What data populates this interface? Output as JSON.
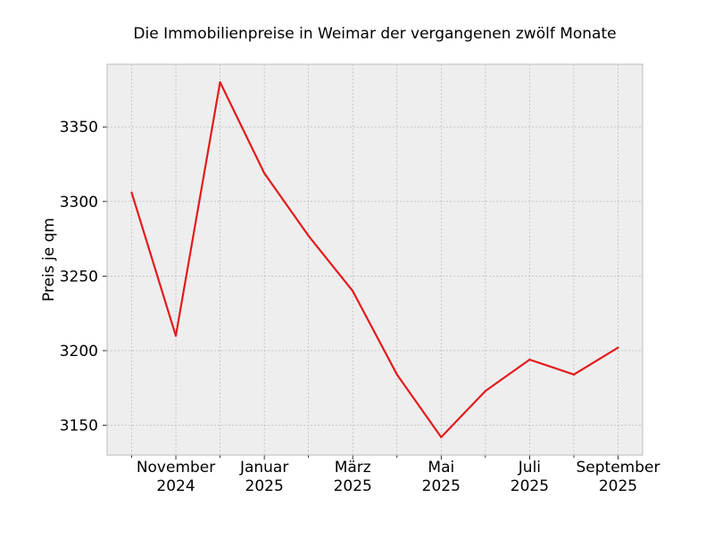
{
  "colors": {
    "line": "#e41a1c",
    "plot_background": "#eeeeee",
    "grid": "#b0b0b0",
    "frame": "#bcbcbc"
  },
  "chart_data": {
    "type": "line",
    "title": "Die Immobilienpreise in Weimar der vergangenen zwölf Monate",
    "xlabel": "",
    "ylabel": "Preis je qm",
    "x": [
      "2024-10",
      "2024-11",
      "2024-12",
      "2025-01",
      "2025-02",
      "2025-03",
      "2025-04",
      "2025-05",
      "2025-06",
      "2025-07",
      "2025-08",
      "2025-09"
    ],
    "series": [
      {
        "name": "",
        "values": [
          3306,
          3210,
          3380,
          3319,
          3277,
          3240,
          3184,
          3142,
          3173,
          3194,
          3184,
          3202
        ]
      }
    ],
    "ylim": [
      3130,
      3392
    ],
    "yticks": [
      3150,
      3200,
      3250,
      3300,
      3350
    ],
    "xticks": [
      {
        "index": 1,
        "label": [
          "November",
          "2024"
        ]
      },
      {
        "index": 3,
        "label": [
          "Januar",
          "2025"
        ]
      },
      {
        "index": 5,
        "label": [
          "März",
          "2025"
        ]
      },
      {
        "index": 7,
        "label": [
          "Mai",
          "2025"
        ]
      },
      {
        "index": 9,
        "label": [
          "Juli",
          "2025"
        ]
      },
      {
        "index": 11,
        "label": [
          "September",
          "2025"
        ]
      }
    ],
    "grid": true,
    "legend": "none"
  }
}
